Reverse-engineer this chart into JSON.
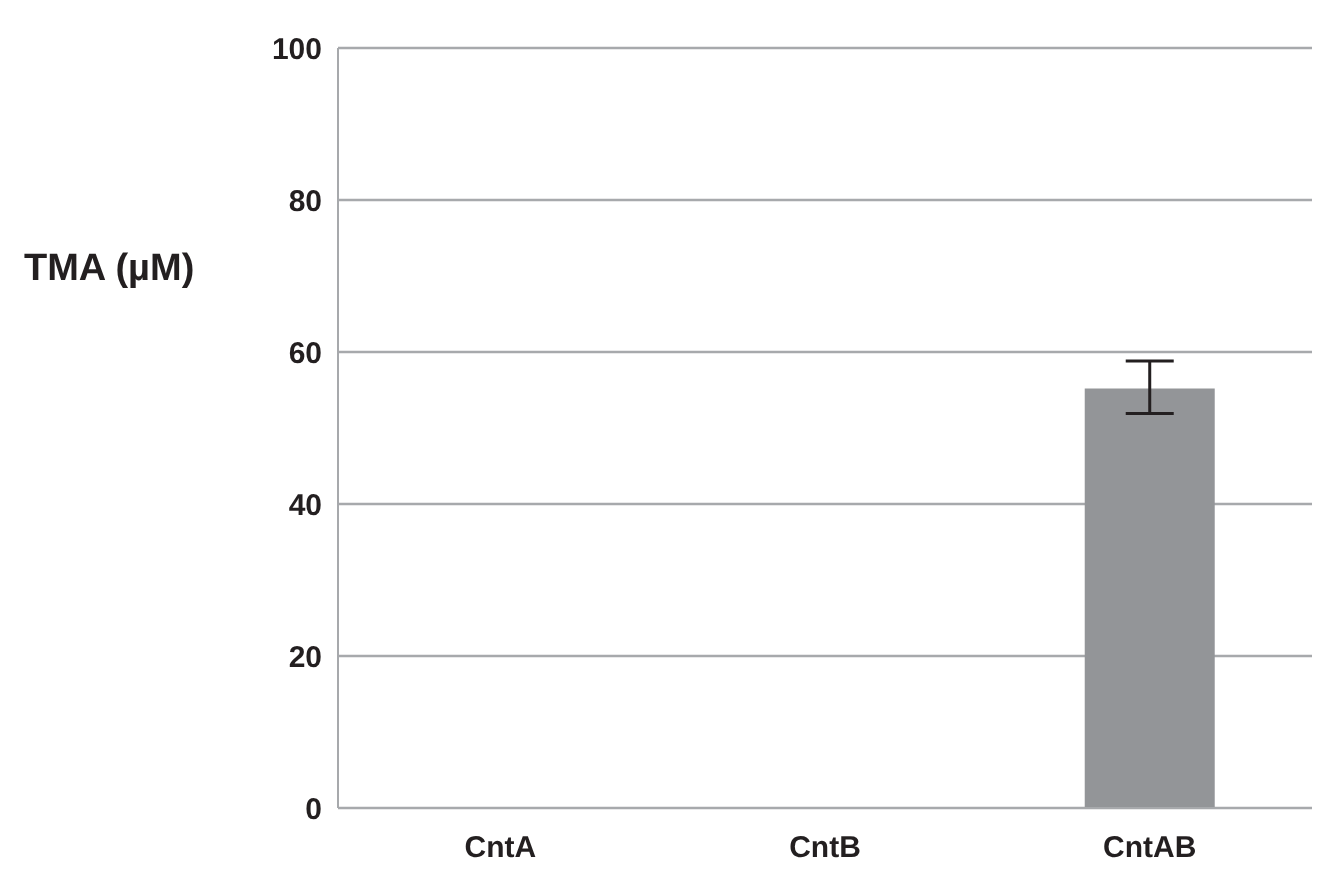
{
  "chart_data": {
    "type": "bar",
    "ylabel": "TMA (µM)",
    "categories": [
      "CntA",
      "CntB",
      "CntAB"
    ],
    "values": [
      0,
      0,
      55.2
    ],
    "color": "#939598",
    "errors": [
      null,
      null,
      [
        51.9,
        58.8
      ]
    ],
    "ylim": [
      0,
      100
    ],
    "yticks": [
      0,
      20,
      40,
      60,
      80,
      100
    ],
    "grid": "y"
  }
}
